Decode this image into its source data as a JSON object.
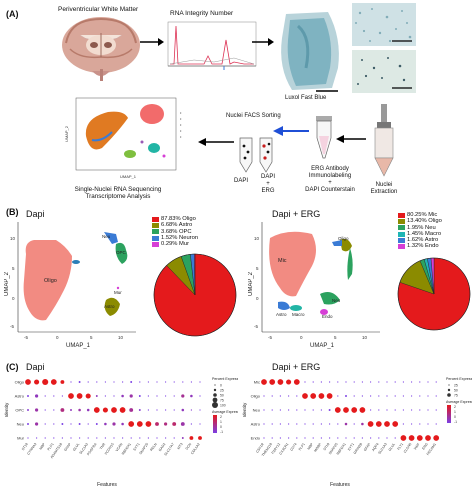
{
  "panel_labels": {
    "a": "(A)",
    "b": "(B)",
    "c": "(C)"
  },
  "panelA": {
    "pvwm_label": "Periventricular White Matter",
    "rin_label": "RNA Integrity Number",
    "luxol_label": "Luxol Fast Blue",
    "nuclei_facs_label": "Nuclei FACS Sorting",
    "dapi_tube": "DAPI",
    "dapi_erg_tube_1": "DAPI",
    "dapi_erg_tube_2": "+",
    "dapi_erg_tube_3": "ERG",
    "erg_antibody_1": "ERG Antibody",
    "erg_antibody_2": "Immunolabeling",
    "erg_antibody_3": "+",
    "erg_antibody_4": "DAPI Counterstain",
    "nuclei_extraction_1": "Nuclei",
    "nuclei_extraction_2": "Extraction",
    "snrna_1": "Single-Nuclei RNA Sequencing",
    "snrna_2": "Transcriptome Analysis",
    "umap_axis_y": "UMAP_2",
    "umap_axis_x": "UMAP_1"
  },
  "panelB": {
    "left_title": "Dapi",
    "right_title": "Dapi + ERG",
    "y_label": "UMAP_2",
    "x_label": "UMAP_1",
    "left_x_ticks": [
      "-5",
      "0",
      "5",
      "10"
    ],
    "left_y_ticks": [
      "10",
      "5",
      "0",
      "-5"
    ],
    "right_x_ticks": [
      "-5",
      "0",
      "5",
      "10"
    ],
    "right_y_ticks": [
      "10",
      "5",
      "0",
      "-5"
    ],
    "left_cluster_labels": {
      "oligo": "Oligo",
      "astro": "Astro",
      "neu": "Neu",
      "opc": "OPC",
      "mur": "Mur"
    },
    "right_cluster_labels": {
      "mic": "Mic",
      "astro": "Astro",
      "macro": "Macro",
      "oligo": "Oligo",
      "neu": "Neu",
      "endo": "Endo"
    }
  },
  "panelC": {
    "left_title": "Dapi",
    "right_title": "Dapi + ERG",
    "y_label": "Identity",
    "x_label": "Features",
    "left_rows": [
      "Oligo",
      "Astro",
      "OPC",
      "Neu",
      "Mur"
    ],
    "right_rows": [
      "Mic",
      "Oligo",
      "Neu",
      "Astro",
      "Endo"
    ],
    "left_features": [
      "ST18",
      "CTNNA3",
      "MBP",
      "PLP1",
      "ADAMTS18",
      "GFAP",
      "GLUL",
      "SLC1A3",
      "PDGFRA",
      "TNR",
      "PCDH15",
      "VCAN",
      "RBFOX1",
      "SYT1",
      "SNAP25",
      "RELN",
      "GAD2",
      "SLC17A7",
      "MT3",
      "DCN",
      "COL1A2"
    ],
    "right_features": [
      "CSF1R",
      "TMEM119",
      "P2RY12",
      "CX3CR1",
      "CD74",
      "PLP1",
      "MBP",
      "MOBP",
      "ST18",
      "SNAP25",
      "RBFOX1",
      "SYT1",
      "GRIN2B",
      "GFAP",
      "AQP4",
      "SLC1A3",
      "GLUL",
      "FLT1",
      "CLDN5",
      "VWF",
      "ERG",
      "PECAM1"
    ],
    "legend_pct_title": "Percent Expressed",
    "legend_pct_values": [
      "0",
      "25",
      "50",
      "75",
      "100"
    ],
    "legend_avg_title": "Average Expression",
    "legend_avg_values": [
      "2",
      "1",
      "0",
      "-1"
    ],
    "legend_pct_right_values": [
      "25",
      "50",
      "75"
    ]
  },
  "chart_data": [
    {
      "type": "pie",
      "title": "Dapi",
      "labels": [
        "Oligo",
        "Astro",
        "OPC",
        "Neuron",
        "Mur"
      ],
      "values": [
        87.83,
        6.68,
        3.68,
        1.52,
        0.29
      ],
      "legend_text": [
        "87.83% Oligo",
        "6.68% Astro",
        "3.68% OPC",
        "1.52% Neuron",
        "0.29% Mur"
      ],
      "colors": [
        "#e41a1c",
        "#8b8b00",
        "#2ca25f",
        "#3a7bd5",
        "#d63fd6"
      ]
    },
    {
      "type": "pie",
      "title": "Dapi + ERG",
      "labels": [
        "Mic",
        "Oligo",
        "Neu",
        "Macro",
        "Astro",
        "Endo"
      ],
      "values": [
        80.25,
        13.4,
        1.95,
        1.45,
        1.62,
        1.32
      ],
      "legend_text": [
        "80.25% Mic",
        "13.40% Oligo",
        "1.95% Neu",
        "1.45% Macro",
        "1.62% Astro",
        "1.32% Endo"
      ],
      "colors": [
        "#e41a1c",
        "#8b8b00",
        "#2ca25f",
        "#1fb5b5",
        "#3a7bd5",
        "#d63fd6"
      ]
    }
  ]
}
